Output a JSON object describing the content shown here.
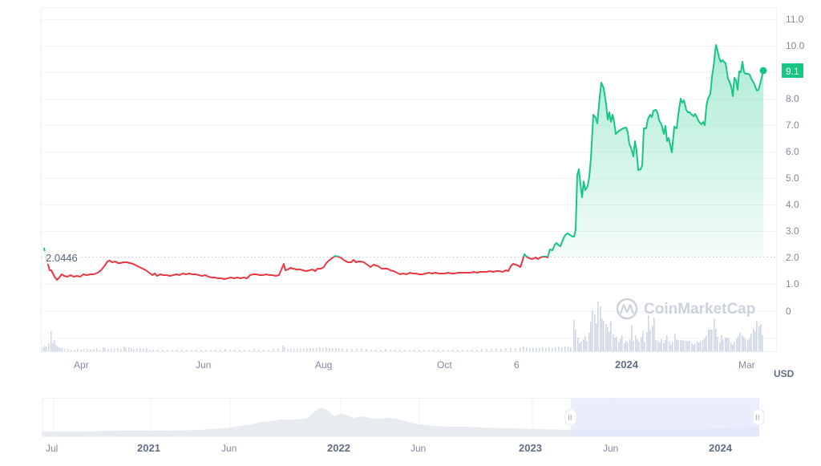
{
  "chart_data": {
    "type": "line",
    "title": "",
    "currency_unit": "USD",
    "baseline_value": 2.0446,
    "baseline_label": "2.0446",
    "current_value": 9.1,
    "current_label": "9.1",
    "ylim": [
      0,
      11
    ],
    "yticks": [
      "11.0",
      "10.0",
      "9.1",
      "8.0",
      "7.0",
      "6.0",
      "5.0",
      "4.0",
      "3.0",
      "2.0",
      "1.0",
      "0"
    ],
    "xticks": [
      {
        "label": "Apr",
        "x": 102,
        "bold": false
      },
      {
        "label": "Jun",
        "x": 254,
        "bold": false
      },
      {
        "label": "Aug",
        "x": 404,
        "bold": false
      },
      {
        "label": "Oct",
        "x": 556,
        "bold": false
      },
      {
        "label": "6",
        "x": 645,
        "bold": false
      },
      {
        "label": "2024",
        "x": 786,
        "bold": true
      },
      {
        "label": "Mar",
        "x": 934,
        "bold": false
      }
    ],
    "series": [
      {
        "name": "Price",
        "color_below": "#ea3943",
        "color_above": "#16c784",
        "points": [
          [
            2023.21,
            1.6
          ],
          [
            2023.25,
            1.25
          ],
          [
            2023.29,
            1.45
          ],
          [
            2023.33,
            1.4
          ],
          [
            2023.37,
            1.9
          ],
          [
            2023.42,
            1.8
          ],
          [
            2023.46,
            1.35
          ],
          [
            2023.5,
            1.45
          ],
          [
            2023.55,
            1.3
          ],
          [
            2023.6,
            1.2
          ],
          [
            2023.65,
            1.35
          ],
          [
            2023.67,
            1.95
          ],
          [
            2023.7,
            1.7
          ],
          [
            2023.75,
            1.5
          ],
          [
            2023.79,
            2.1
          ],
          [
            2023.83,
            1.75
          ],
          [
            2023.87,
            1.55
          ],
          [
            2023.92,
            1.45
          ],
          [
            2023.96,
            1.5
          ],
          [
            2024.0,
            1.5
          ],
          [
            2024.04,
            1.55
          ],
          [
            2024.08,
            1.85
          ],
          [
            2024.12,
            2.05
          ],
          [
            2024.14,
            2.1
          ],
          [
            2024.17,
            2.9
          ],
          [
            2024.2,
            3.0
          ],
          [
            2024.22,
            5.4
          ],
          [
            2024.24,
            4.3
          ],
          [
            2024.26,
            7.4
          ],
          [
            2024.28,
            8.7
          ],
          [
            2024.31,
            7.3
          ],
          [
            2024.33,
            7.0
          ],
          [
            2024.35,
            5.3
          ],
          [
            2024.37,
            7.5
          ],
          [
            2024.39,
            6.0
          ],
          [
            2024.41,
            8.0
          ],
          [
            2024.44,
            7.0
          ],
          [
            2024.47,
            9.9
          ],
          [
            2024.49,
            9.1
          ],
          [
            2024.51,
            8.3
          ],
          [
            2024.53,
            9.3
          ],
          [
            2024.55,
            8.5
          ],
          [
            2024.57,
            9.1
          ]
        ]
      }
    ],
    "volume": {
      "color": "#cfd6e4",
      "note": "Low volume before the December spike; high volume with peaks up to roughly 2x the 0-gridline spacing after December 2023"
    },
    "navigator": {
      "xticks": [
        {
          "label": "Jul",
          "x": 66,
          "bold": false
        },
        {
          "label": "2021",
          "x": 189,
          "bold": true
        },
        {
          "label": "Jun",
          "x": 286,
          "bold": false
        },
        {
          "label": "2022",
          "x": 425,
          "bold": true
        },
        {
          "label": "Jun",
          "x": 522,
          "bold": false
        },
        {
          "label": "2023",
          "x": 664,
          "bold": true
        },
        {
          "label": "Jun",
          "x": 763,
          "bold": false
        },
        {
          "label": "2024",
          "x": 901,
          "bold": true
        }
      ],
      "selection_start_x": 712,
      "selection_end_x": 947
    }
  },
  "ui": {
    "watermark": "CoinMarketCap",
    "unit_label": "USD",
    "handle_glyph": "II"
  }
}
